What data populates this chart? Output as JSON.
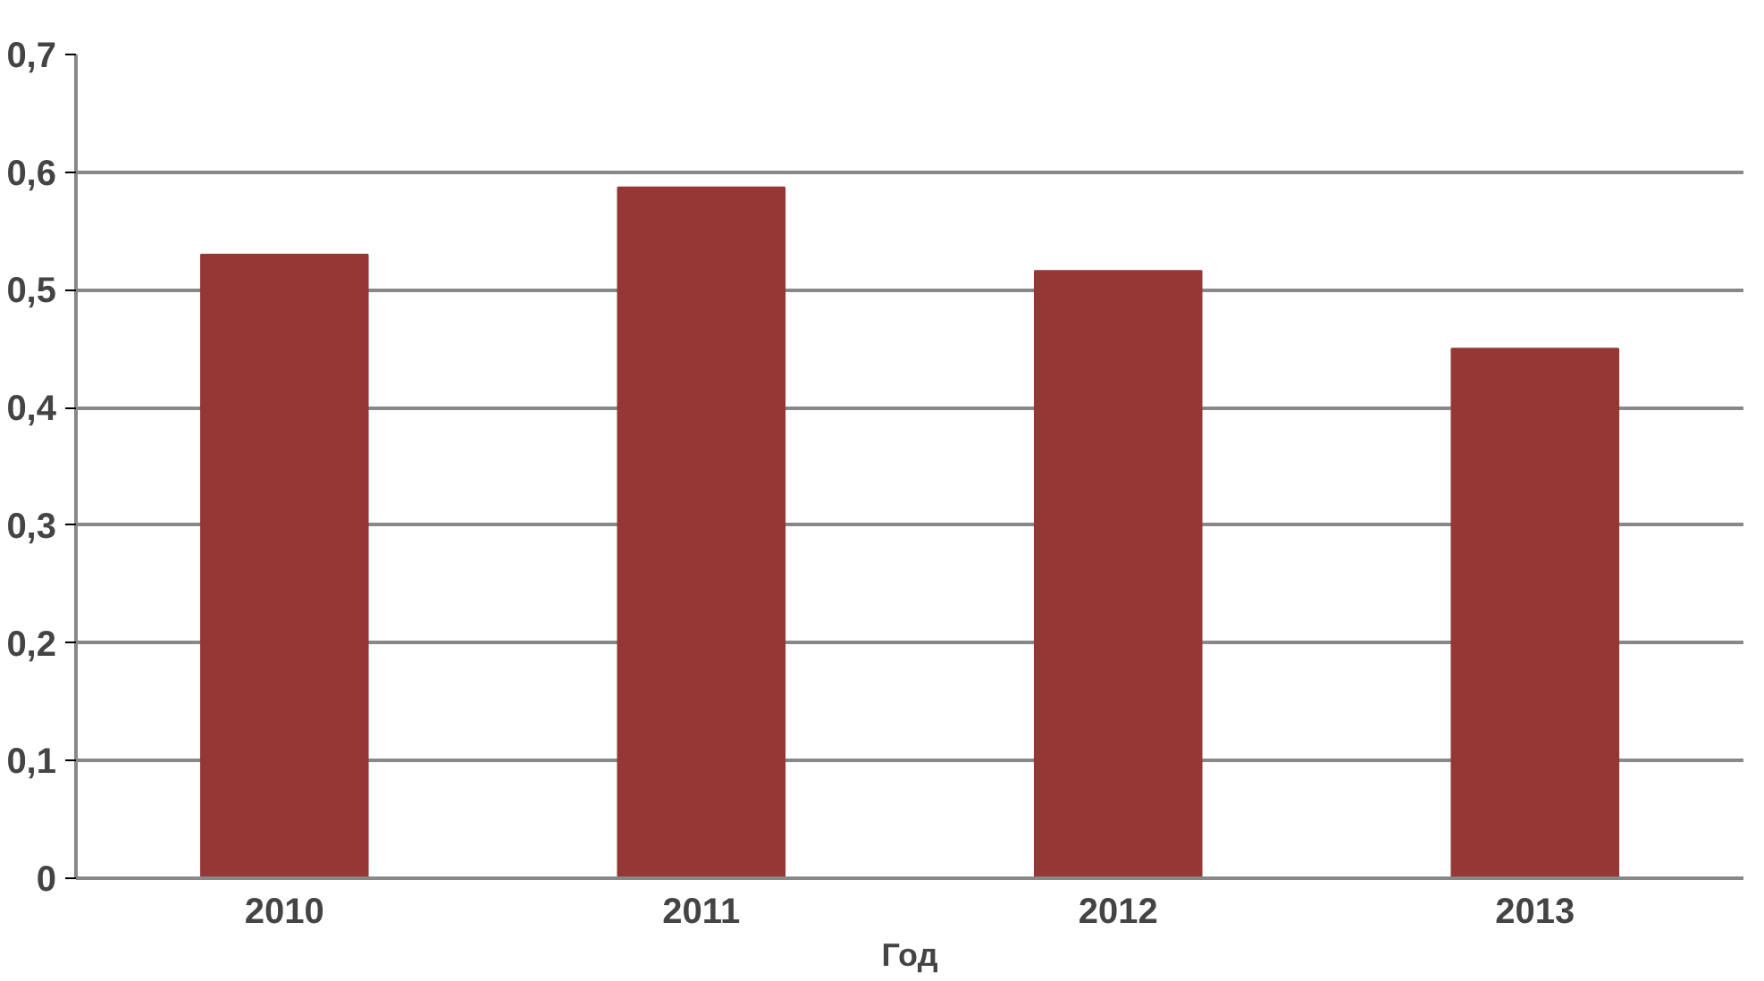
{
  "chart_data": {
    "type": "bar",
    "xlabel": "Год",
    "categories": [
      "2010",
      "2011",
      "2012",
      "2013"
    ],
    "series": [
      {
        "color": "#953735",
        "values": [
          0.53,
          0.587,
          0.516,
          0.45
        ]
      }
    ],
    "ylim": [
      0,
      0.7
    ],
    "yticks": [
      0,
      {
        "value": 0.1,
        "label": "0,1"
      },
      {
        "value": 0.2,
        "label": "0,2"
      },
      {
        "value": 0.3,
        "label": "0,3"
      },
      {
        "value": 0.4,
        "label": "0,4"
      },
      {
        "value": 0.5,
        "label": "0,5"
      },
      {
        "value": 0.6,
        "label": "0,6"
      },
      {
        "value": 0.7,
        "label": "0,7"
      }
    ],
    "grid": "y"
  }
}
